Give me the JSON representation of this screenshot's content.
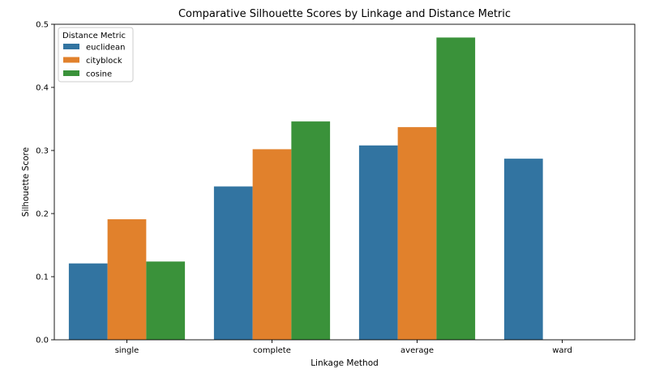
{
  "chart_data": {
    "type": "bar",
    "title": "Comparative Silhouette Scores by Linkage and Distance Metric",
    "xlabel": "Linkage Method",
    "ylabel": "Silhouette Score",
    "categories": [
      "single",
      "complete",
      "average",
      "ward"
    ],
    "ylim": [
      0,
      0.5
    ],
    "yticks": [
      "0.0",
      "0.1",
      "0.2",
      "0.3",
      "0.4",
      "0.5"
    ],
    "grid": false,
    "legend": {
      "title": "Distance Metric",
      "placement": "top-left"
    },
    "series": [
      {
        "name": "euclidean",
        "color": "#3274a1",
        "values": [
          0.121,
          0.243,
          0.308,
          0.287
        ]
      },
      {
        "name": "cityblock",
        "color": "#e1812c",
        "values": [
          0.191,
          0.302,
          0.337,
          null
        ]
      },
      {
        "name": "cosine",
        "color": "#3a923a",
        "values": [
          0.124,
          0.346,
          0.479,
          null
        ]
      }
    ]
  }
}
